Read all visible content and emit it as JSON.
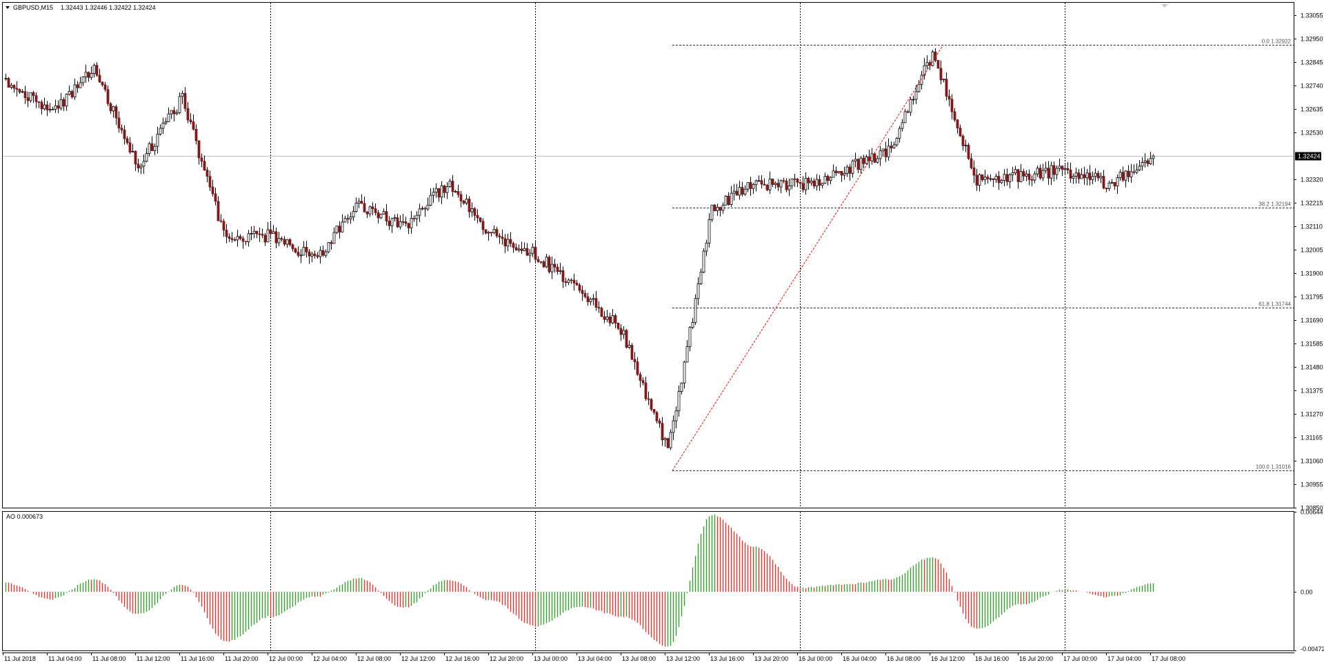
{
  "header": {
    "symbol": "GBPUSD,M15",
    "ohlc": "1.32443 1.32446 1.32422 1.32424",
    "ao_label": "AO 0.000673"
  },
  "colors": {
    "bull": "#000000",
    "bear": "#7f1a1a",
    "ao_up": "#33a02c",
    "ao_down": "#e8322d",
    "fib_line": "#333333",
    "trend_line": "#ff0000",
    "grid": "#000000",
    "price_line": "#c0c0c0",
    "price_badge": "#000000"
  },
  "chart_data": [
    {
      "type": "candlestick",
      "title": "GBPUSD,M15",
      "timeframe": "M15",
      "ylim": [
        1.3085,
        1.3311
      ],
      "current_price": "1.32424",
      "y_ticks": [
        "1.33055",
        "1.32950",
        "1.32845",
        "1.32740",
        "1.32635",
        "1.32530",
        "1.32320",
        "1.32215",
        "1.32110",
        "1.32005",
        "1.31900",
        "1.31795",
        "1.31690",
        "1.31585",
        "1.31480",
        "1.31375",
        "1.31270",
        "1.31165",
        "1.31060",
        "1.30955",
        "1.30850"
      ],
      "x_ticks": [
        "11 Jul 2018",
        "11 Jul 04:00",
        "11 Jul 08:00",
        "11 Jul 12:00",
        "11 Jul 16:00",
        "11 Jul 20:00",
        "12 Jul 00:00",
        "12 Jul 04:00",
        "12 Jul 08:00",
        "12 Jul 12:00",
        "12 Jul 16:00",
        "12 Jul 20:00",
        "13 Jul 00:00",
        "13 Jul 04:00",
        "13 Jul 08:00",
        "13 Jul 12:00",
        "13 Jul 16:00",
        "13 Jul 20:00",
        "16 Jul 00:00",
        "16 Jul 04:00",
        "16 Jul 08:00",
        "16 Jul 12:00",
        "16 Jul 16:00",
        "16 Jul 20:00",
        "17 Jul 00:00",
        "17 Jul 04:00",
        "17 Jul 08:00"
      ],
      "day_separators": [
        "12 Jul 00:00",
        "13 Jul 00:00",
        "16 Jul 00:00",
        "17 Jul 00:00"
      ],
      "close_path": [
        {
          "x": "11 Jul 2018",
          "y": 1.3277
        },
        {
          "x": "11 Jul 04:00",
          "y": 1.3261
        },
        {
          "x": "11 Jul 08:00",
          "y": 1.3281
        },
        {
          "x": "11 Jul 12:00",
          "y": 1.3238
        },
        {
          "x": "11 Jul 16:00",
          "y": 1.3268
        },
        {
          "x": "11 Jul 20:00",
          "y": 1.3204
        },
        {
          "x": "12 Jul 00:00",
          "y": 1.3207
        },
        {
          "x": "12 Jul 04:00",
          "y": 1.3196
        },
        {
          "x": "12 Jul 08:00",
          "y": 1.3221
        },
        {
          "x": "12 Jul 12:00",
          "y": 1.321
        },
        {
          "x": "12 Jul 16:00",
          "y": 1.323
        },
        {
          "x": "12 Jul 20:00",
          "y": 1.3208
        },
        {
          "x": "13 Jul 00:00",
          "y": 1.3198
        },
        {
          "x": "13 Jul 04:00",
          "y": 1.3183
        },
        {
          "x": "13 Jul 08:00",
          "y": 1.3163
        },
        {
          "x": "13 Jul 12:00",
          "y": 1.311
        },
        {
          "x": "13 Jul 16:00",
          "y": 1.3218
        },
        {
          "x": "13 Jul 20:00",
          "y": 1.323
        },
        {
          "x": "16 Jul 00:00",
          "y": 1.3229
        },
        {
          "x": "16 Jul 04:00",
          "y": 1.3236
        },
        {
          "x": "16 Jul 08:00",
          "y": 1.3245
        },
        {
          "x": "16 Jul 12:00",
          "y": 1.3288
        },
        {
          "x": "16 Jul 16:00",
          "y": 1.3232
        },
        {
          "x": "16 Jul 20:00",
          "y": 1.3234
        },
        {
          "x": "17 Jul 00:00",
          "y": 1.3236
        },
        {
          "x": "17 Jul 04:00",
          "y": 1.323
        },
        {
          "x": "17 Jul 08:00",
          "y": 1.32424
        }
      ],
      "fibonacci": {
        "levels": [
          {
            "label": "0.0 1.32922",
            "price": 1.32922
          },
          {
            "label": "38.2 1.32194",
            "price": 1.32194
          },
          {
            "label": "61.8 1.31744",
            "price": 1.31744
          },
          {
            "label": "100.0 1.31016",
            "price": 1.31016
          }
        ],
        "trend_from": {
          "x": "13 Jul 12:00",
          "price": 1.31016
        },
        "trend_to": {
          "x": "16 Jul 12:00",
          "price": 1.32922
        }
      }
    },
    {
      "type": "bar",
      "title": "AO 0.000673",
      "ylim": [
        -0.004726,
        0.00644
      ],
      "y_ticks": [
        "0.00644",
        "0.00",
        "-0.004726"
      ],
      "values_by_time": [
        {
          "x": "11 Jul 2018",
          "y": 0.0007
        },
        {
          "x": "11 Jul 04:00",
          "y": -0.0006
        },
        {
          "x": "11 Jul 08:00",
          "y": 0.001
        },
        {
          "x": "11 Jul 12:00",
          "y": -0.0018
        },
        {
          "x": "11 Jul 16:00",
          "y": 0.0006
        },
        {
          "x": "11 Jul 20:00",
          "y": -0.004
        },
        {
          "x": "12 Jul 00:00",
          "y": -0.002
        },
        {
          "x": "12 Jul 04:00",
          "y": -0.0004
        },
        {
          "x": "12 Jul 08:00",
          "y": 0.0011
        },
        {
          "x": "12 Jul 12:00",
          "y": -0.0013
        },
        {
          "x": "12 Jul 16:00",
          "y": 0.001
        },
        {
          "x": "12 Jul 20:00",
          "y": -0.0007
        },
        {
          "x": "13 Jul 00:00",
          "y": -0.0028
        },
        {
          "x": "13 Jul 04:00",
          "y": -0.0012
        },
        {
          "x": "13 Jul 08:00",
          "y": -0.002
        },
        {
          "x": "13 Jul 12:00",
          "y": -0.0044
        },
        {
          "x": "13 Jul 16:00",
          "y": 0.0062
        },
        {
          "x": "13 Jul 20:00",
          "y": 0.0036
        },
        {
          "x": "16 Jul 00:00",
          "y": 0.0003
        },
        {
          "x": "16 Jul 04:00",
          "y": 0.0006
        },
        {
          "x": "16 Jul 08:00",
          "y": 0.001
        },
        {
          "x": "16 Jul 12:00",
          "y": 0.0028
        },
        {
          "x": "16 Jul 16:00",
          "y": -0.003
        },
        {
          "x": "16 Jul 20:00",
          "y": -0.001
        },
        {
          "x": "17 Jul 00:00",
          "y": 0.0002
        },
        {
          "x": "17 Jul 04:00",
          "y": -0.0004
        },
        {
          "x": "17 Jul 08:00",
          "y": 0.000673
        }
      ]
    }
  ]
}
